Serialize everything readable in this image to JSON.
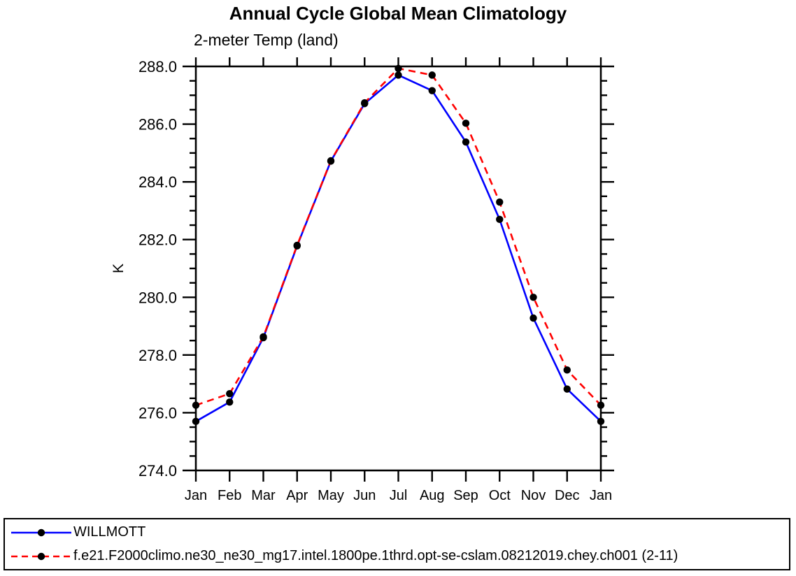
{
  "page": {
    "background": "#ffffff"
  },
  "chart_data": {
    "type": "line",
    "title": "Annual Cycle Global Mean Climatology",
    "subtitle": "2-meter Temp (land)",
    "xlabel": "",
    "ylabel": "K",
    "categories": [
      "Jan",
      "Feb",
      "Mar",
      "Apr",
      "May",
      "Jun",
      "Jul",
      "Aug",
      "Sep",
      "Oct",
      "Nov",
      "Dec",
      "Jan"
    ],
    "ylim": [
      274.0,
      288.0
    ],
    "ytick_step_major": 2.0,
    "ytick_step_minor": 0.5,
    "ytick_labels": [
      "274.0",
      "276.0",
      "278.0",
      "280.0",
      "282.0",
      "284.0",
      "286.0",
      "288.0"
    ],
    "grid": false,
    "legend_position": "bottom-box",
    "axis_color": "#000000",
    "marker_color": "#000000",
    "series": [
      {
        "name": "WILLMOTT",
        "color": "#0000ff",
        "line_style": "solid",
        "marker": "filled-circle",
        "values": [
          275.7,
          276.37,
          278.6,
          281.78,
          284.72,
          286.71,
          287.7,
          287.16,
          285.38,
          282.7,
          279.28,
          276.82,
          275.7
        ]
      },
      {
        "name": "f.e21.F2000climo.ne30_ne30_mg17.intel.1800pe.1thrd.opt-se-cslam.08212019.chey.ch001 (2-11)",
        "color": "#ff0000",
        "line_style": "dashed",
        "marker": "filled-circle",
        "values": [
          276.26,
          276.66,
          278.63,
          281.8,
          284.73,
          286.74,
          287.93,
          287.7,
          286.03,
          283.3,
          280.0,
          277.48,
          276.26
        ]
      }
    ]
  }
}
